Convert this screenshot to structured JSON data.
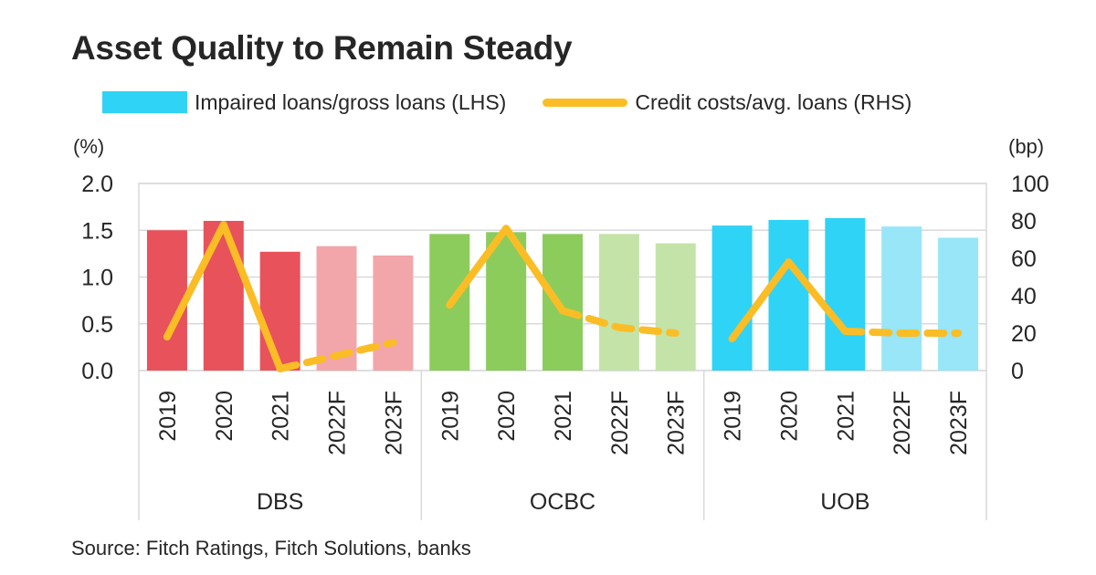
{
  "title": "Asset Quality to Remain Steady",
  "legend": {
    "bar_label": "Impaired loans/gross loans (LHS)",
    "line_label": "Credit costs/avg. loans (RHS)"
  },
  "source": "Source: Fitch Ratings, Fitch Solutions, banks",
  "chart_data": {
    "type": "bar",
    "title": "Asset Quality to Remain Steady",
    "y_left": {
      "unit": "(%)",
      "range": [
        0,
        2.0
      ],
      "ticks": [
        "0.0",
        "0.5",
        "1.0",
        "1.5",
        "2.0"
      ]
    },
    "y_right": {
      "unit": "(bp)",
      "range": [
        0,
        100
      ],
      "ticks": [
        "0",
        "20",
        "40",
        "60",
        "80",
        "100"
      ]
    },
    "grid": true,
    "legend_position": "top",
    "groups": [
      {
        "name": "DBS",
        "categories": [
          "2019",
          "2020",
          "2021",
          "2022F",
          "2023F"
        ],
        "impaired_loans_pct": [
          1.5,
          1.6,
          1.27,
          1.33,
          1.23
        ],
        "credit_costs_bp": [
          18,
          78,
          1,
          8,
          15
        ],
        "bar_color": "#e8525b",
        "forecast_bar_color": "#f2a6aa"
      },
      {
        "name": "OCBC",
        "categories": [
          "2019",
          "2020",
          "2021",
          "2022F",
          "2023F"
        ],
        "impaired_loans_pct": [
          1.46,
          1.48,
          1.46,
          1.46,
          1.36
        ],
        "credit_costs_bp": [
          35,
          76,
          32,
          23,
          20
        ],
        "bar_color": "#8ccc5c",
        "forecast_bar_color": "#c4e3a8"
      },
      {
        "name": "UOB",
        "categories": [
          "2019",
          "2020",
          "2021",
          "2022F",
          "2023F"
        ],
        "impaired_loans_pct": [
          1.55,
          1.61,
          1.63,
          1.54,
          1.42
        ],
        "credit_costs_bp": [
          17,
          58,
          21,
          20,
          20
        ],
        "bar_color": "#2fd3f5",
        "forecast_bar_color": "#98e6f8"
      }
    ],
    "forecast_categories": [
      "2022F",
      "2023F"
    ],
    "line_color": "#fbbd25"
  }
}
